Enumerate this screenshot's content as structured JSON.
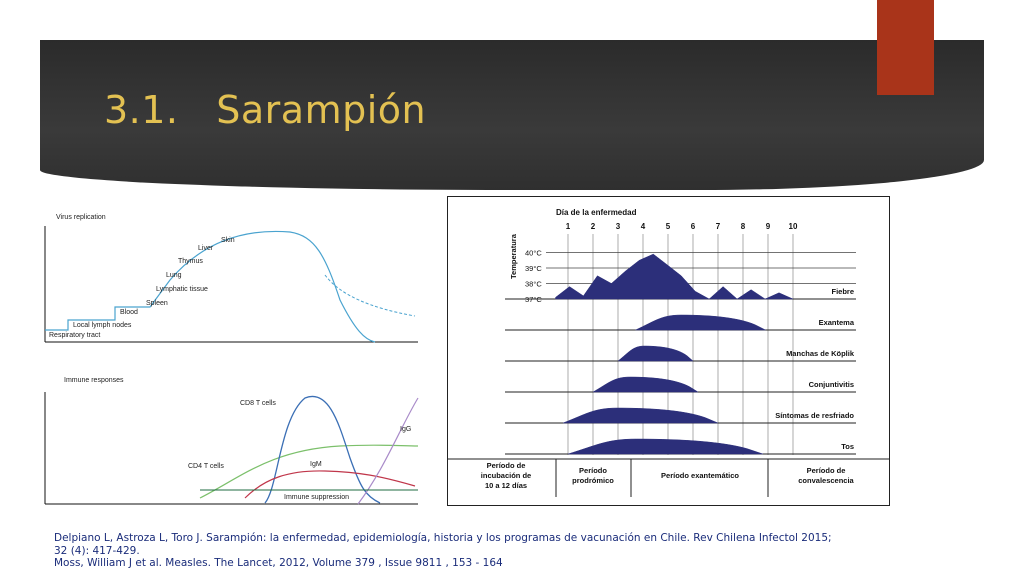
{
  "slide": {
    "title": "3.1.   Sarampión"
  },
  "virus_chart": {
    "title": "Virus replication",
    "labels": [
      "Respiratory tract",
      "Local lymph nodes",
      "Blood",
      "Spleen",
      "Lymphatic tissue",
      "Lung",
      "Thymus",
      "Liver",
      "Skin"
    ]
  },
  "immune_chart": {
    "title": "Immune responses",
    "labels": [
      "CD8 T cells",
      "CD4 T cells",
      "IgM",
      "IgG",
      "Immune suppression"
    ]
  },
  "measles_chart": {
    "day_header": "Día de la enfermedad",
    "days": [
      "1",
      "2",
      "3",
      "4",
      "5",
      "6",
      "7",
      "8",
      "9",
      "10"
    ],
    "temp_axis_label": "Temperatura",
    "temps": [
      "40°C",
      "39°C",
      "38°C",
      "37°C"
    ],
    "rows": [
      "Fiebre",
      "Exantema",
      "Manchas de Köplik",
      "Conjuntivitis",
      "Síntomas de resfriado",
      "Tos"
    ],
    "periods": [
      [
        "Período de",
        "incubación de",
        "10 a 12 días"
      ],
      [
        "Período",
        "prodrómico"
      ],
      [
        "Período exantemático"
      ],
      [
        "Período de",
        "convalescencia"
      ]
    ]
  },
  "chart_data": {
    "type": "area",
    "title": "",
    "xlabel": "Día de la enfermedad",
    "ylabel": "Temperatura",
    "x": [
      1,
      2,
      3,
      4,
      5,
      6,
      7,
      8,
      9,
      10
    ],
    "series": [
      {
        "name": "Fiebre",
        "start": 0.5,
        "end": 10,
        "y_temp_c": [
          37.1,
          37.8,
          37.2,
          38.5,
          38.0,
          38.8,
          39.5,
          39.9,
          39.2,
          38.5,
          37.5,
          37.0,
          37.8,
          37.0,
          37.6,
          37.0,
          37.4,
          37.0
        ]
      },
      {
        "name": "Exantema",
        "start": 3.7,
        "end": 8.9
      },
      {
        "name": "Manchas de Köplik",
        "start": 3.0,
        "end": 6.0
      },
      {
        "name": "Conjuntivitis",
        "start": 2.0,
        "end": 6.2
      },
      {
        "name": "Síntomas de resfriado",
        "start": 0.8,
        "end": 7.0
      },
      {
        "name": "Tos",
        "start": 1.0,
        "end": 8.8
      }
    ],
    "ylim": [
      37,
      40
    ]
  },
  "references": [
    "Delpiano L, Astroza L, Toro J. Sarampión: la enfermedad, epidemiología, historia y los programas de vacunación en Chile. Rev Chilena Infectol 2015;",
    "32 (4): 417-429.",
    "Moss, William J et al. Measles. The Lancet, 2012,  Volume 379 , Issue 9811 , 153 - 164"
  ]
}
